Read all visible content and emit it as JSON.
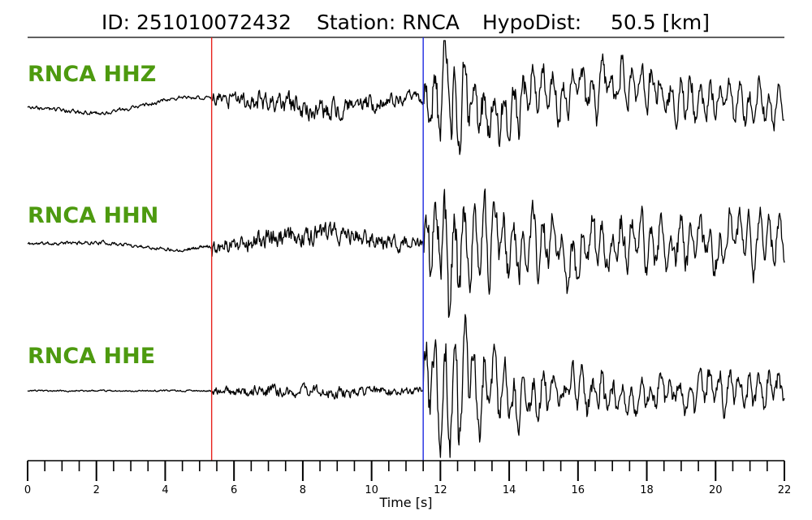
{
  "header": {
    "id_text": "ID: 251010072432",
    "station_text": "Station: RNCA",
    "hypodist_label": "HypoDist:",
    "hypodist_value": "50.5 [km]"
  },
  "colors": {
    "label": "#4d9a0f",
    "p_pick": "#e8211c",
    "s_pick": "#1f2be0",
    "trace": "#000000"
  },
  "chart_data": {
    "type": "line",
    "xlabel": "Time [s]",
    "xlim": [
      0,
      22
    ],
    "x_ticks": [
      0,
      2,
      4,
      6,
      8,
      10,
      12,
      14,
      16,
      18,
      20,
      22
    ],
    "x_tick_labels": [
      "0",
      "2",
      "4",
      "6",
      "8",
      "10",
      "12",
      "14",
      "16",
      "18",
      "20",
      "22"
    ],
    "minor_tick_step": 0.5,
    "p_pick_time": 5.35,
    "s_pick_time": 11.5,
    "sample_interval": 0.02,
    "series": [
      {
        "name": "RNCA HHZ",
        "label": "RNCA HHZ",
        "pre_amp": 0.05,
        "p_amp": 0.28,
        "s_amp": 1.0,
        "coda_amp": 0.35,
        "drift": [
          0,
          -0.1,
          0.15,
          0.1,
          -0.05,
          0.15,
          -0.05,
          0.2,
          0.3,
          0.1,
          -0.05
        ],
        "seed": 3
      },
      {
        "name": "RNCA HHN",
        "label": "RNCA HHN",
        "pre_amp": 0.05,
        "p_amp": 0.3,
        "s_amp": 1.0,
        "coda_amp": 0.45,
        "drift": [
          0,
          0.02,
          -0.1,
          0.05,
          0.15,
          0.0,
          -0.1,
          -0.05,
          0.0,
          0.05,
          0.1
        ],
        "seed": 11
      },
      {
        "name": "RNCA HHE",
        "label": "RNCA HHE",
        "pre_amp": 0.02,
        "p_amp": 0.15,
        "s_amp": 1.0,
        "coda_amp": 0.3,
        "drift": [
          0,
          0.0,
          0.0,
          0.0,
          -0.02,
          0.0,
          0.02,
          0.0,
          0.0,
          0.0,
          0.0
        ],
        "seed": 23
      }
    ]
  }
}
